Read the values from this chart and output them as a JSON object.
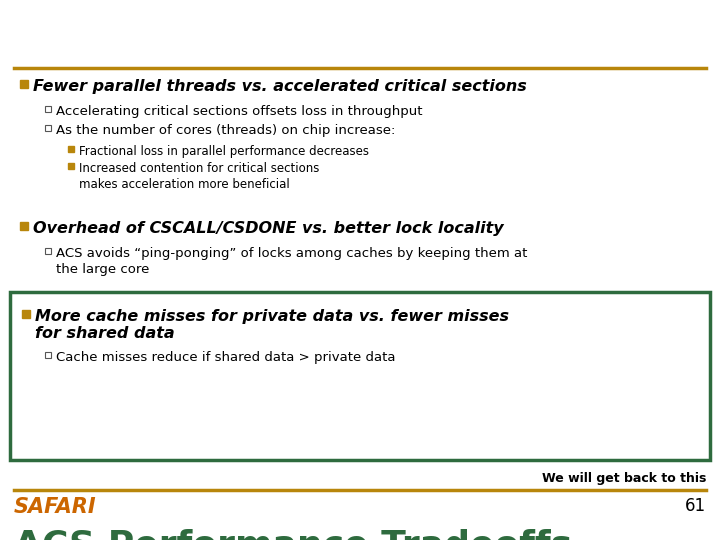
{
  "title": "ACS Performance Tradeoffs",
  "title_color": "#2E6B3E",
  "title_fontsize": 26,
  "bg_color": "#FFFFFF",
  "line_color": "#B8860B",
  "safari_color": "#CC6600",
  "page_num": "61",
  "bullet_color": "#B8860B",
  "heading_color": "#000000",
  "section1_heading": "Fewer parallel threads vs. accelerated critical sections",
  "section1_bullet1": "Accelerating critical sections offsets loss in throughput",
  "section1_bullet2": "As the number of cores (threads) on chip increase:",
  "section1_sub1": "Fractional loss in parallel performance decreases",
  "section1_sub2_line1": "Increased contention for critical sections",
  "section1_sub2_line2": "makes acceleration more beneficial",
  "section2_heading": "Overhead of CSCALL/CSDONE vs. better lock locality",
  "section2_bullet1_line1": "ACS avoids “ping-ponging” of locks among caches by keeping them at",
  "section2_bullet1_line2": "the large core",
  "section3_heading_line1": "More cache misses for private data vs. fewer misses",
  "section3_heading_line2": "for shared data",
  "section3_bullet1": "Cache misses reduce if shared data > private data",
  "footnote": "We will get back to this",
  "box_color": "#2E6B3E",
  "indent1": 20,
  "indent2": 45,
  "indent3": 68,
  "indent4": 82
}
